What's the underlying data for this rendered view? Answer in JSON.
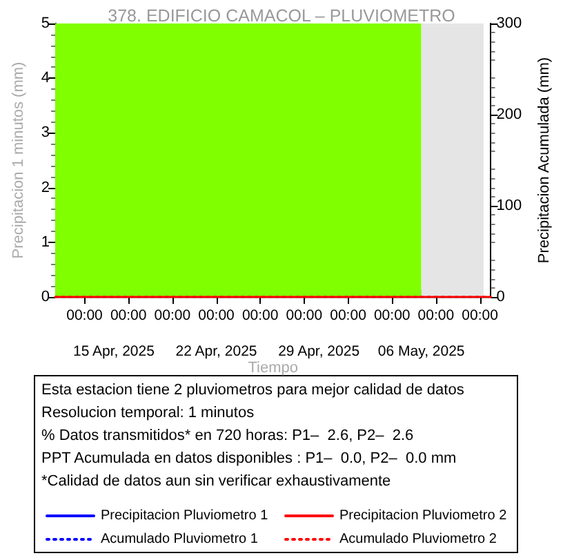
{
  "chart_data": {
    "type": "line",
    "title": "378. EDIFICIO CAMACOL – PLUVIOMETRO",
    "xlabel": "Tiempo",
    "ylabel": "Precipitacion 1 minutos (mm)",
    "y2label": "Precipitacion Acumulada (mm)",
    "xlim": [
      "2025-04-11T00:00",
      "2025-05-10T18:00"
    ],
    "xticks": [
      {
        "value": "2025-04-13",
        "label": "00:00"
      },
      {
        "value": "2025-04-16",
        "label": "00:00"
      },
      {
        "value": "2025-04-19",
        "label": "00:00"
      },
      {
        "value": "2025-04-22",
        "label": "00:00"
      },
      {
        "value": "2025-04-25",
        "label": "00:00"
      },
      {
        "value": "2025-04-28",
        "label": "00:00"
      },
      {
        "value": "2025-05-01",
        "label": "00:00"
      },
      {
        "value": "2025-05-04",
        "label": "00:00"
      },
      {
        "value": "2025-05-07",
        "label": "00:00"
      },
      {
        "value": "2025-05-10",
        "label": "00:00"
      }
    ],
    "x2lim": [
      "2025-04-11T00:00",
      "2025-05-10T18:00"
    ],
    "x2ticks": [
      {
        "value": "2025-04-15",
        "label": "15 Apr, 2025"
      },
      {
        "value": "2025-04-22",
        "label": "22 Apr, 2025"
      },
      {
        "value": "2025-04-29",
        "label": "29 Apr, 2025"
      },
      {
        "value": "2025-05-06",
        "label": "06 May, 2025"
      }
    ],
    "ylim": [
      0,
      5
    ],
    "yticks": [
      0,
      1,
      2,
      3,
      4,
      5
    ],
    "y2lim": [
      0,
      300
    ],
    "y2ticks": [
      0,
      100,
      200,
      300
    ],
    "bands": [
      {
        "axis": "x",
        "from": "2025-04-11T00:00",
        "to": "2025-05-06T00:00",
        "color": "#80ff00"
      },
      {
        "axis": "x",
        "from": "2025-05-06T00:00",
        "to": "2025-05-10T06:00",
        "color": "#e5e5e5"
      }
    ],
    "series": [
      {
        "name": "Precipitacion Pluviometro 1",
        "color": "#0000ff",
        "line_style": "solid"
      },
      {
        "name": "Precipitacion Pluviometro 2",
        "color": "#ff0000",
        "line_style": "solid",
        "x": [
          "2025-04-11T00:00",
          "2025-05-10T18:00"
        ],
        "values": [
          0,
          0
        ]
      },
      {
        "name": "Acumulado Pluviometro 1",
        "color": "#0000ff",
        "line_style": "dotted"
      },
      {
        "name": "Acumulado Pluviometro 2",
        "color": "#ff0000",
        "line_style": "dotted",
        "x": [
          "2025-04-11T00:00",
          "2025-05-10T18:00"
        ],
        "values": [
          0,
          0
        ]
      }
    ],
    "annotations": [
      "Esta estacion tiene 2 pluviometros para mejor calidad de datos",
      "Resolucion temporal: 1 minutos",
      "% Datos transmitidos* en 720 horas: P1–  2.6, P2–  2.6",
      "PPT Acumulada en datos disponibles : P1–  0.0, P2–  0.0 mm",
      "*Calidad de datos aun sin verificar exhaustivamente"
    ],
    "legend": "bottom",
    "grid": false,
    "marker": "none"
  }
}
